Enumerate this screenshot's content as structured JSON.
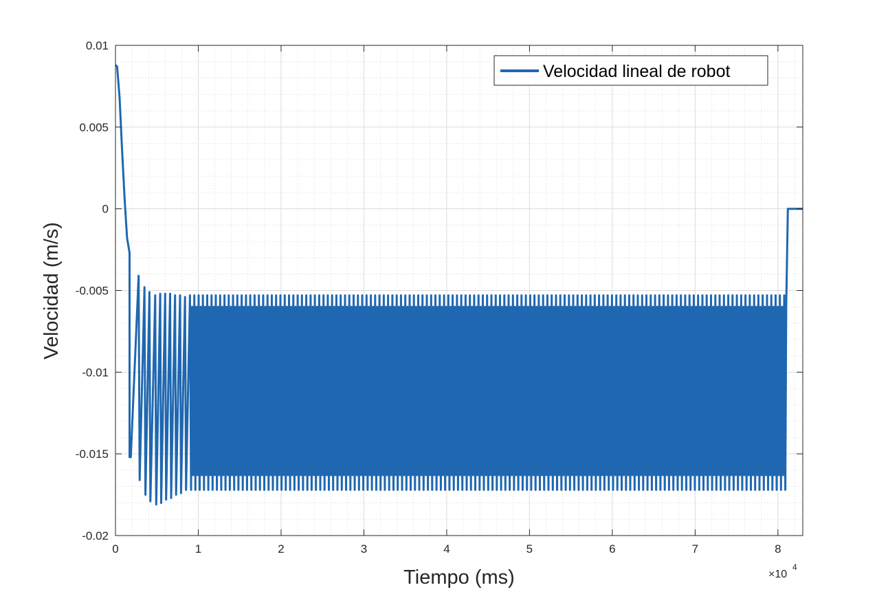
{
  "chart_data": {
    "type": "line",
    "xlabel": "Tiempo (ms)",
    "ylabel": "Velocidad (m/s)",
    "xlim": [
      0,
      83000
    ],
    "ylim": [
      -0.02,
      0.01
    ],
    "x_exponent_label": {
      "base": "×10",
      "exp": "4"
    },
    "x_ticks": [
      0,
      10000,
      20000,
      30000,
      40000,
      50000,
      60000,
      70000,
      80000
    ],
    "x_tick_labels": [
      "0",
      "1",
      "2",
      "3",
      "4",
      "5",
      "6",
      "7",
      "8"
    ],
    "y_ticks": [
      0.01,
      0.005,
      0,
      -0.005,
      -0.01,
      -0.015,
      -0.02
    ],
    "y_tick_labels": [
      "0.01",
      "0.005",
      "0",
      "-0.005",
      "-0.01",
      "-0.015",
      "-0.02"
    ],
    "grid": true,
    "minor_grid": true,
    "legend_position": "top-right",
    "colors": {
      "series": "#1f67b0",
      "grid": "#dcdcdc",
      "minor_grid": "#bdbdbd",
      "axes": "#262626"
    },
    "series": [
      {
        "name": "Velocidad lineal de robot",
        "description_points": {
          "decay": {
            "x": [
              0,
              200,
              500,
              800,
              1100,
              1400,
              1700
            ],
            "y": [
              0.0088,
              0.0087,
              0.0068,
              0.0036,
              0.0006,
              -0.0018,
              -0.0027
            ]
          },
          "first_drop": {
            "x": 1700,
            "y_low": -0.0152
          },
          "transient_peaks": {
            "x": [
              2800,
              3500,
              4100,
              4800,
              5400,
              6000,
              6600,
              7200,
              7800,
              8400
            ],
            "y_high": [
              -0.0041,
              -0.0048,
              -0.0051,
              -0.0053,
              -0.0052,
              -0.0052,
              -0.0052,
              -0.0053,
              -0.0053,
              -0.0054
            ],
            "y_low": [
              -0.0166,
              -0.0175,
              -0.0179,
              -0.0181,
              -0.018,
              -0.0178,
              -0.0177,
              -0.0175,
              -0.0174,
              -0.0172
            ]
          },
          "steady_oscillation": {
            "x_start": 9000,
            "x_end": 81000,
            "y_upper_envelope": -0.006,
            "y_upper_spikes": -0.0053,
            "y_lower_envelope": -0.0163,
            "y_lower_spikes": -0.0172
          },
          "final": {
            "x": [
              81000,
              81200,
              83000
            ],
            "y": [
              -0.006,
              0,
              0
            ]
          }
        }
      }
    ]
  }
}
